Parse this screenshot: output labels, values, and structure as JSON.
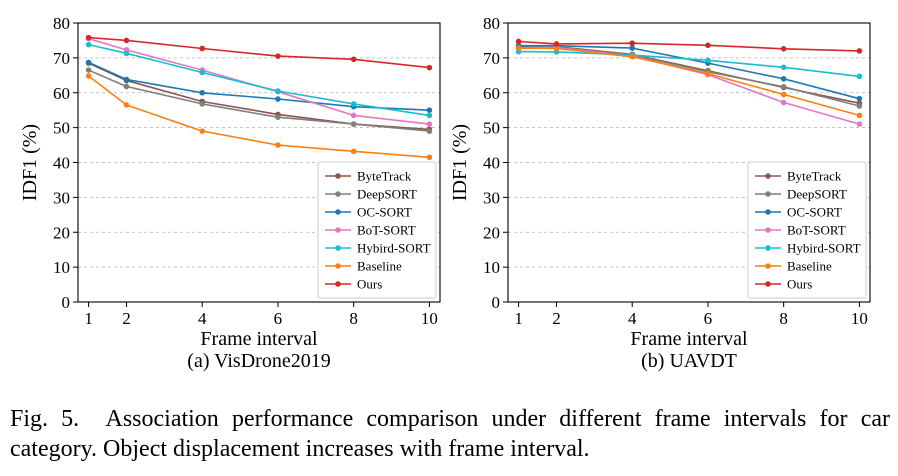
{
  "figure": {
    "caption_label": "Fig. 5.",
    "caption_text": "Association performance comparison under different frame intervals for car category. Object displacement increases with frame interval."
  },
  "chart_data": [
    {
      "type": "line",
      "subtitle": "(a) VisDrone2019",
      "xlabel": "Frame interval",
      "ylabel": "IDF1 (%)",
      "x": [
        1,
        2,
        4,
        6,
        8,
        10
      ],
      "x_tick_labels": [
        "1",
        "2",
        "4",
        "6",
        "8",
        "10"
      ],
      "ylim": [
        0,
        80
      ],
      "y_ticks": [
        0,
        10,
        20,
        30,
        40,
        50,
        60,
        70,
        80
      ],
      "grid": "horizontal dashed",
      "legend_position": "lower-right",
      "series": [
        {
          "name": "ByteTrack",
          "color": "#8c564b",
          "values": [
            68.5,
            63.5,
            57.5,
            53.8,
            51.0,
            49.5
          ]
        },
        {
          "name": "DeepSORT",
          "color": "#7f7f7f",
          "values": [
            66.5,
            61.8,
            56.8,
            53.0,
            51.0,
            49.0
          ]
        },
        {
          "name": "OC-SORT",
          "color": "#1f77b4",
          "values": [
            68.7,
            63.8,
            60.0,
            58.2,
            56.0,
            55.0
          ]
        },
        {
          "name": "BoT-SORT",
          "color": "#e377c2",
          "values": [
            75.5,
            72.3,
            66.5,
            60.3,
            53.5,
            51.0
          ]
        },
        {
          "name": "Hybird-SORT",
          "color": "#17becf",
          "values": [
            73.8,
            71.3,
            65.8,
            60.5,
            56.8,
            53.5
          ]
        },
        {
          "name": "Baseline",
          "color": "#ff7f0e",
          "values": [
            64.8,
            56.5,
            49.0,
            45.0,
            43.2,
            41.5
          ]
        },
        {
          "name": "Ours",
          "color": "#d62728",
          "values": [
            75.8,
            75.0,
            72.7,
            70.5,
            69.6,
            67.2
          ]
        }
      ]
    },
    {
      "type": "line",
      "subtitle": "(b) UAVDT",
      "xlabel": "Frame interval",
      "ylabel": "IDF1 (%)",
      "x": [
        1,
        2,
        4,
        6,
        8,
        10
      ],
      "x_tick_labels": [
        "1",
        "2",
        "4",
        "6",
        "8",
        "10"
      ],
      "ylim": [
        0,
        80
      ],
      "y_ticks": [
        0,
        10,
        20,
        30,
        40,
        50,
        60,
        70,
        80
      ],
      "grid": "horizontal dashed",
      "legend_position": "lower-right",
      "series": [
        {
          "name": "ByteTrack",
          "color": "#8c564b",
          "values": [
            73.0,
            73.2,
            71.0,
            66.3,
            61.5,
            57.0
          ]
        },
        {
          "name": "DeepSORT",
          "color": "#7f7f7f",
          "values": [
            73.2,
            73.0,
            70.8,
            66.0,
            61.7,
            56.2
          ]
        },
        {
          "name": "OC-SORT",
          "color": "#1f77b4",
          "values": [
            73.5,
            73.5,
            72.8,
            68.5,
            64.0,
            58.3
          ]
        },
        {
          "name": "BoT-SORT",
          "color": "#e377c2",
          "values": [
            72.8,
            73.0,
            70.5,
            65.2,
            57.2,
            51.0
          ]
        },
        {
          "name": "Hybird-SORT",
          "color": "#17becf",
          "values": [
            71.8,
            71.7,
            70.8,
            69.3,
            67.3,
            64.7
          ]
        },
        {
          "name": "Baseline",
          "color": "#ff7f0e",
          "values": [
            72.8,
            72.7,
            70.3,
            65.5,
            59.5,
            53.5
          ]
        },
        {
          "name": "Ours",
          "color": "#d62728",
          "values": [
            74.7,
            74.0,
            74.2,
            73.6,
            72.6,
            72.0
          ]
        }
      ]
    }
  ]
}
